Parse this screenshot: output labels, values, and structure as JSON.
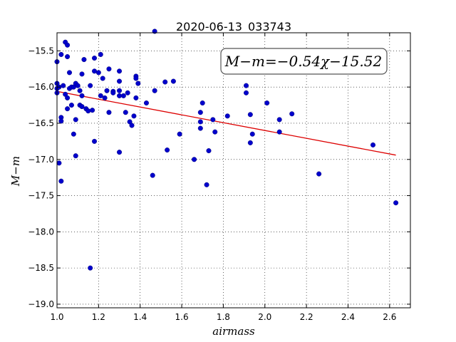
{
  "chart_data": {
    "type": "scatter",
    "title": "2020-06-13_033743",
    "xlabel": "airmass",
    "ylabel": "M−m",
    "xlim": [
      1.0,
      2.7
    ],
    "ylim": [
      -19.05,
      -15.25
    ],
    "yinverted": false,
    "grid": true,
    "xticks": [
      "1.0",
      "1.2",
      "1.4",
      "1.6",
      "1.8",
      "2.0",
      "2.2",
      "2.4",
      "2.6"
    ],
    "yticks": [
      "-15.5",
      "-16.0",
      "-16.5",
      "-17.0",
      "-17.5",
      "-18.0",
      "-18.5",
      "-19.0"
    ],
    "point_color": "#0000cc",
    "line_color": "#dd0000",
    "annotation": "M−m=−0.54χ−15.52",
    "fit": {
      "slope": -0.54,
      "intercept": -15.52,
      "x_range": [
        1.0,
        2.63
      ]
    },
    "points": [
      [
        1.0,
        -15.65
      ],
      [
        1.0,
        -15.95
      ],
      [
        1.0,
        -16.02
      ],
      [
        1.0,
        -16.08
      ],
      [
        1.01,
        -16.0
      ],
      [
        1.01,
        -17.05
      ],
      [
        1.02,
        -15.55
      ],
      [
        1.02,
        -16.42
      ],
      [
        1.02,
        -16.47
      ],
      [
        1.02,
        -17.3
      ],
      [
        1.03,
        -15.98
      ],
      [
        1.04,
        -15.38
      ],
      [
        1.04,
        -16.1
      ],
      [
        1.05,
        -16.15
      ],
      [
        1.05,
        -16.3
      ],
      [
        1.05,
        -15.58
      ],
      [
        1.05,
        -15.42
      ],
      [
        1.06,
        -15.8
      ],
      [
        1.06,
        -16.02
      ],
      [
        1.07,
        -16.25
      ],
      [
        1.07,
        -16.0
      ],
      [
        1.08,
        -16.65
      ],
      [
        1.08,
        -16.0
      ],
      [
        1.09,
        -15.95
      ],
      [
        1.09,
        -16.45
      ],
      [
        1.09,
        -16.95
      ],
      [
        1.1,
        -15.98
      ],
      [
        1.11,
        -16.05
      ],
      [
        1.11,
        -16.25
      ],
      [
        1.12,
        -16.27
      ],
      [
        1.12,
        -16.12
      ],
      [
        1.12,
        -15.82
      ],
      [
        1.13,
        -15.62
      ],
      [
        1.14,
        -16.3
      ],
      [
        1.15,
        -16.33
      ],
      [
        1.16,
        -18.5
      ],
      [
        1.16,
        -15.98
      ],
      [
        1.17,
        -16.32
      ],
      [
        1.18,
        -15.6
      ],
      [
        1.18,
        -15.78
      ],
      [
        1.18,
        -16.75
      ],
      [
        1.2,
        -15.8
      ],
      [
        1.21,
        -15.55
      ],
      [
        1.21,
        -16.12
      ],
      [
        1.22,
        -15.88
      ],
      [
        1.23,
        -16.15
      ],
      [
        1.24,
        -16.05
      ],
      [
        1.25,
        -15.75
      ],
      [
        1.25,
        -16.35
      ],
      [
        1.27,
        -16.06
      ],
      [
        1.27,
        -16.08
      ],
      [
        1.3,
        -15.78
      ],
      [
        1.3,
        -15.92
      ],
      [
        1.3,
        -16.05
      ],
      [
        1.3,
        -16.12
      ],
      [
        1.3,
        -16.9
      ],
      [
        1.32,
        -16.12
      ],
      [
        1.33,
        -16.35
      ],
      [
        1.34,
        -16.08
      ],
      [
        1.35,
        -16.48
      ],
      [
        1.36,
        -16.53
      ],
      [
        1.37,
        -16.4
      ],
      [
        1.38,
        -15.85
      ],
      [
        1.38,
        -15.88
      ],
      [
        1.38,
        -16.15
      ],
      [
        1.39,
        -15.95
      ],
      [
        1.43,
        -16.22
      ],
      [
        1.46,
        -17.22
      ],
      [
        1.47,
        -16.05
      ],
      [
        1.47,
        -15.23
      ],
      [
        1.52,
        -15.93
      ],
      [
        1.53,
        -16.87
      ],
      [
        1.56,
        -15.92
      ],
      [
        1.59,
        -16.65
      ],
      [
        1.66,
        -17.0
      ],
      [
        1.69,
        -16.48
      ],
      [
        1.69,
        -16.35
      ],
      [
        1.69,
        -16.57
      ],
      [
        1.7,
        -16.22
      ],
      [
        1.72,
        -17.35
      ],
      [
        1.73,
        -16.88
      ],
      [
        1.75,
        -16.45
      ],
      [
        1.76,
        -16.62
      ],
      [
        1.82,
        -16.4
      ],
      [
        1.91,
        -15.98
      ],
      [
        1.91,
        -16.08
      ],
      [
        1.93,
        -16.38
      ],
      [
        1.93,
        -16.77
      ],
      [
        1.94,
        -16.65
      ],
      [
        2.01,
        -16.22
      ],
      [
        2.07,
        -16.45
      ],
      [
        2.07,
        -16.62
      ],
      [
        2.13,
        -16.37
      ],
      [
        2.26,
        -17.2
      ],
      [
        2.52,
        -16.8
      ],
      [
        2.63,
        -17.6
      ]
    ]
  }
}
